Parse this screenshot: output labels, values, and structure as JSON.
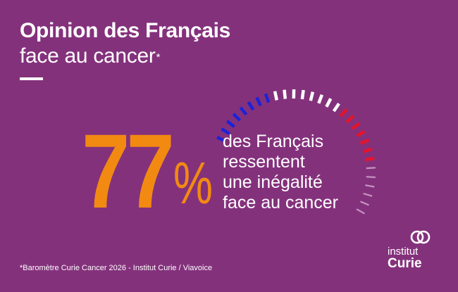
{
  "header": {
    "title": "Opinion des Français",
    "subtitle": "face au cancer",
    "subtitle_mark": "*"
  },
  "stat": {
    "value": "77",
    "unit": "%",
    "lines": [
      "des Français",
      "ressentent",
      "une inégalité",
      "face au cancer"
    ]
  },
  "gauge": {
    "colors": {
      "blue": "#1c22d8",
      "white": "#ffffff",
      "red": "#e3142c",
      "faded": "#cfa8cc"
    }
  },
  "footnote": "*Baromètre Curie Cancer 2026 - Institut Curie / Viavoice",
  "logo": {
    "line1": "institut",
    "line2": "Curie",
    "icon": "curie-interlocked-rings-icon"
  },
  "colors": {
    "background": "#84317c",
    "accent": "#f28a12"
  }
}
